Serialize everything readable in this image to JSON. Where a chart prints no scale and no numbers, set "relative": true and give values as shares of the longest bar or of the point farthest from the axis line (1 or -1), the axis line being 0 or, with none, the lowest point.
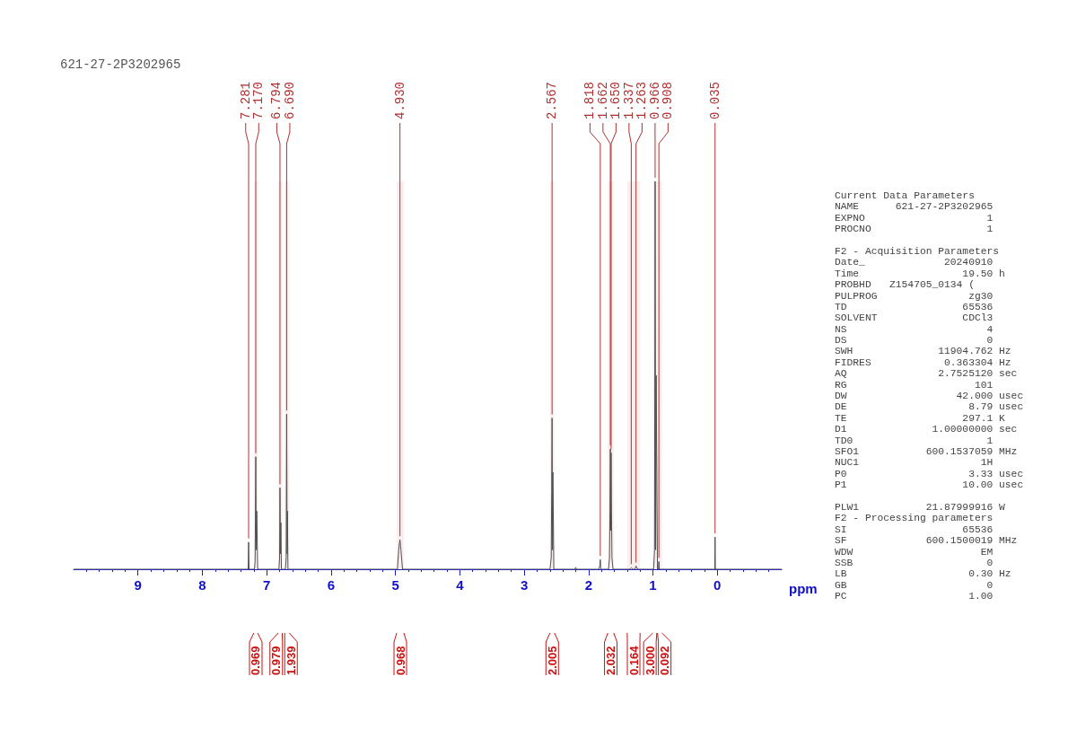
{
  "chart_data": [
    {
      "type": "line",
      "title": "621-27-2P3202965",
      "xlabel": "ppm",
      "relative": true,
      "color": "#505050",
      "xlim": [
        10,
        -1
      ],
      "xticks": [
        9,
        8,
        7,
        6,
        5,
        4,
        3,
        2,
        1,
        0
      ],
      "grid": false,
      "marker": "none",
      "line_style": "solid",
      "bands": [
        {
          "axis": "x",
          "from": 7.2,
          "to": 7.14,
          "label": "0.969"
        },
        {
          "axis": "x",
          "from": 6.82,
          "to": 6.76,
          "label": "0.979"
        },
        {
          "axis": "x",
          "from": 6.72,
          "to": 6.65,
          "label": "1.939"
        },
        {
          "axis": "x",
          "from": 4.98,
          "to": 4.87,
          "label": "0.968"
        },
        {
          "axis": "x",
          "from": 2.6,
          "to": 2.53,
          "label": "2.005"
        },
        {
          "axis": "x",
          "from": 1.7,
          "to": 1.61,
          "label": "2.032"
        },
        {
          "axis": "x",
          "from": 1.4,
          "to": 1.2,
          "label": "0.164"
        },
        {
          "axis": "x",
          "from": 1.0,
          "to": 0.94,
          "label": "3.000"
        },
        {
          "axis": "x",
          "from": 0.93,
          "to": 0.86,
          "label": "0.092"
        }
      ],
      "x": [
        10,
        7.3,
        7.288,
        7.281,
        7.274,
        7.19,
        7.18,
        7.17,
        7.163,
        7.155,
        7.14,
        6.81,
        6.8,
        6.794,
        6.786,
        6.78,
        6.772,
        6.71,
        6.697,
        6.69,
        6.683,
        6.678,
        6.67,
        4.97,
        4.945,
        4.93,
        4.915,
        4.89,
        2.6,
        2.58,
        2.573,
        2.567,
        2.56,
        2.555,
        2.54,
        2.21,
        2.2,
        2.19,
        1.84,
        1.825,
        1.818,
        1.81,
        1.69,
        1.675,
        1.668,
        1.662,
        1.656,
        1.65,
        1.644,
        1.637,
        1.62,
        1.36,
        1.337,
        1.31,
        1.28,
        1.263,
        1.24,
        0.99,
        0.975,
        0.966,
        0.958,
        0.95,
        0.93,
        0.915,
        0.908,
        0.9,
        0.05,
        0.04,
        0.035,
        0.03,
        -1
      ],
      "values": [
        0,
        0,
        0,
        0.07,
        0,
        0,
        0.02,
        0.29,
        0.05,
        0.15,
        0,
        0,
        0.03,
        0.21,
        0.04,
        0.12,
        0,
        0,
        0.03,
        0.4,
        0.04,
        0.15,
        0,
        0,
        0.06,
        0.076,
        0.05,
        0,
        0,
        0.03,
        0.2,
        0.39,
        0.05,
        0.25,
        0,
        0,
        0.005,
        0,
        0,
        0.01,
        0.025,
        0,
        0,
        0.03,
        0.15,
        0.31,
        0.1,
        0.3,
        0.15,
        0.03,
        0,
        0,
        0.004,
        0,
        0,
        0.008,
        0,
        0,
        0.05,
        1,
        0.05,
        0.5,
        0,
        0,
        0.02,
        0,
        0,
        0,
        0.083,
        0,
        0
      ],
      "annotations": [
        {
          "text": "7.281",
          "x": 7.281,
          "y": 0.07
        },
        {
          "text": "7.170",
          "x": 7.17,
          "y": 0.29
        },
        {
          "text": "6.794",
          "x": 6.794,
          "y": 0.21
        },
        {
          "text": "6.690",
          "x": 6.69,
          "y": 0.4
        },
        {
          "text": "4.930",
          "x": 4.93,
          "y": 0.076
        },
        {
          "text": "2.567",
          "x": 2.567,
          "y": 0.39
        },
        {
          "text": "1.818",
          "x": 1.818,
          "y": 0.025
        },
        {
          "text": "1.662",
          "x": 1.662,
          "y": 0.31
        },
        {
          "text": "1.650",
          "x": 1.65,
          "y": 0.3
        },
        {
          "text": "1.337",
          "x": 1.337,
          "y": 0.004
        },
        {
          "text": "1.263",
          "x": 1.263,
          "y": 0.008
        },
        {
          "text": "0.966",
          "x": 0.966,
          "y": 1
        },
        {
          "text": "0.908",
          "x": 0.908,
          "y": 0.02
        },
        {
          "text": "0.035",
          "x": 0.035,
          "y": 0.083
        }
      ]
    },
    {
      "type": "other",
      "annotations": [
        "Current Data Parameters",
        "NAME      621-27-2P3202965",
        "EXPNO                    1",
        "PROCNO                   1",
        "F2 - Acquisition Parameters",
        "Date_             20240910",
        "Time                 19.50 h",
        "PROBHD   Z154705_0134 (",
        "PULPROG               zg30",
        "TD                   65536",
        "SOLVENT              CDCl3",
        "NS                       4",
        "DS                       0",
        "SWH              11904.762 Hz",
        "FIDRES            0.363304 Hz",
        "AQ               2.7525120 sec",
        "RG                     101",
        "DW                  42.000 usec",
        "DE                    8.79 usec",
        "TE                   297.1 K",
        "D1              1.00000000 sec",
        "TD0                      1",
        "SFO1           600.1537059 MHz",
        "NUC1                    1H",
        "P0                    3.33 usec",
        "P1                   10.00 usec",
        "PLW1           21.87999916 W",
        "F2 - Processing parameters",
        "SI                   65536",
        "SF             600.1500019 MHz",
        "WDW                     EM",
        "SSB                      0",
        "LB                    0.30 Hz",
        "GB                       0",
        "PC                    1.00"
      ]
    }
  ]
}
